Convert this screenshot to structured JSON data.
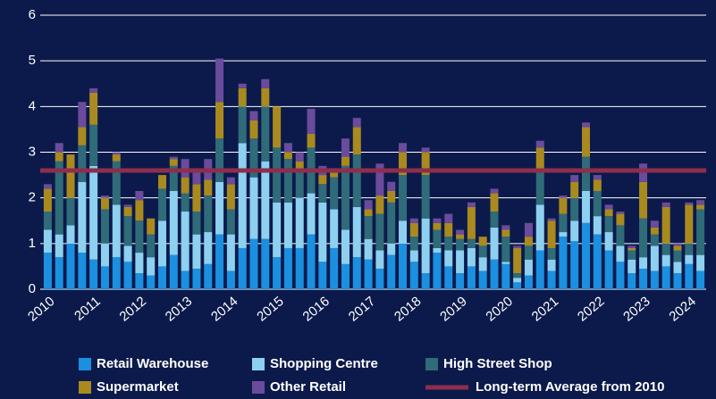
{
  "chart_data": {
    "type": "stacked_bar",
    "categories": [
      "2010",
      null,
      null,
      null,
      "2011",
      null,
      null,
      null,
      "2012",
      null,
      null,
      null,
      "2013",
      null,
      null,
      null,
      "2014",
      null,
      null,
      null,
      "2015",
      null,
      null,
      null,
      "2016",
      null,
      null,
      null,
      "2017",
      null,
      null,
      null,
      "2018",
      null,
      null,
      null,
      "2019",
      null,
      null,
      null,
      "2020",
      null,
      null,
      null,
      "2021",
      null,
      null,
      null,
      "2022",
      null,
      null,
      null,
      "2023",
      null,
      null,
      null,
      "2024",
      null
    ],
    "series": [
      {
        "name": "Retail Warehouse",
        "color": "#1b8fe0",
        "values": [
          0.8,
          0.7,
          1.0,
          0.8,
          0.65,
          0.5,
          0.7,
          0.6,
          0.35,
          0.3,
          0.5,
          0.75,
          0.4,
          0.45,
          0.55,
          1.2,
          0.4,
          0.9,
          1.1,
          1.1,
          0.7,
          0.9,
          0.9,
          1.2,
          0.6,
          0.9,
          0.55,
          0.7,
          0.65,
          0.45,
          0.75,
          1.0,
          0.6,
          0.35,
          0.8,
          0.5,
          0.35,
          0.5,
          0.4,
          0.65,
          0.55,
          0.15,
          0.3,
          0.85,
          0.4,
          1.15,
          1.05,
          1.45,
          1.2,
          0.85,
          0.6,
          0.35,
          0.45,
          0.4,
          0.5,
          0.35,
          0.55,
          0.4
        ]
      },
      {
        "name": "Shopping Centre",
        "color": "#8dd0ef",
        "values": [
          0.5,
          0.5,
          0.4,
          1.55,
          2.05,
          0.5,
          1.15,
          0.35,
          0.45,
          0.4,
          1.0,
          1.4,
          1.3,
          0.75,
          0.7,
          1.15,
          0.8,
          2.3,
          1.35,
          1.7,
          1.2,
          1.0,
          1.1,
          0.9,
          1.3,
          0.85,
          0.75,
          1.1,
          0.45,
          0.4,
          0.25,
          0.5,
          0.25,
          1.2,
          0.1,
          0.35,
          0.5,
          0.4,
          0.3,
          0.7,
          0.05,
          0.1,
          0.35,
          1.0,
          0.25,
          0.1,
          0.45,
          0.7,
          0.4,
          0.4,
          0.35,
          0.3,
          0.25,
          0.55,
          0.25,
          0.25,
          0.2,
          0.35
        ]
      },
      {
        "name": "High Street Shop",
        "color": "#2f6b78",
        "values": [
          0.4,
          1.6,
          0.6,
          0.8,
          0.9,
          0.75,
          0.95,
          0.65,
          0.7,
          0.5,
          0.7,
          0.55,
          0.4,
          0.5,
          0.8,
          0.95,
          0.55,
          0.8,
          0.85,
          1.2,
          1.2,
          0.95,
          0.6,
          1.0,
          0.4,
          0.7,
          1.4,
          1.15,
          0.5,
          0.8,
          0.9,
          1.0,
          0.3,
          0.95,
          0.4,
          0.3,
          0.25,
          0.2,
          0.25,
          0.35,
          0.55,
          0.1,
          0.3,
          0.75,
          0.25,
          0.4,
          0.5,
          0.75,
          0.55,
          0.35,
          0.45,
          0.2,
          0.85,
          0.25,
          0.25,
          0.25,
          0.25,
          1.0
        ]
      },
      {
        "name": "Supermarket",
        "color": "#a98a1f",
        "values": [
          0.5,
          0.2,
          0.95,
          0.4,
          0.7,
          0.25,
          0.15,
          0.2,
          0.45,
          0.35,
          0.3,
          0.15,
          0.35,
          0.6,
          0.35,
          0.8,
          0.55,
          0.4,
          0.4,
          0.4,
          0.9,
          0.15,
          0.2,
          0.3,
          0.2,
          0.1,
          0.2,
          0.6,
          0.15,
          0.4,
          0.25,
          0.5,
          0.3,
          0.5,
          0.15,
          0.3,
          0.1,
          0.7,
          0.2,
          0.4,
          0.15,
          0.55,
          0.2,
          0.5,
          0.6,
          0.35,
          0.35,
          0.65,
          0.25,
          0.15,
          0.25,
          0.05,
          0.8,
          0.15,
          0.8,
          0.1,
          0.85,
          0.1
        ]
      },
      {
        "name": "Other Retail",
        "color": "#6b4b9b",
        "values": [
          0.1,
          0.2,
          0.0,
          0.55,
          0.1,
          0.05,
          0.05,
          0.05,
          0.2,
          0.0,
          0.0,
          0.05,
          0.4,
          0.25,
          0.45,
          0.95,
          0.15,
          0.1,
          0.2,
          0.2,
          0.0,
          0.2,
          0.2,
          0.55,
          0.2,
          0.1,
          0.4,
          0.2,
          0.2,
          0.7,
          0.2,
          0.2,
          0.1,
          0.1,
          0.1,
          0.2,
          0.1,
          0.1,
          0.0,
          0.1,
          0.1,
          0.05,
          0.3,
          0.15,
          0.05,
          0.05,
          0.15,
          0.1,
          0.1,
          0.1,
          0.05,
          0.05,
          0.4,
          0.15,
          0.1,
          0.05,
          0.05,
          0.1
        ]
      }
    ],
    "average": {
      "name": "Long-term Average from 2010",
      "value": 2.6,
      "color": "#8e2e4c"
    },
    "ylim": [
      0,
      6
    ],
    "yticks": [
      0,
      1,
      2,
      3,
      4,
      5,
      6
    ],
    "grid": true
  }
}
